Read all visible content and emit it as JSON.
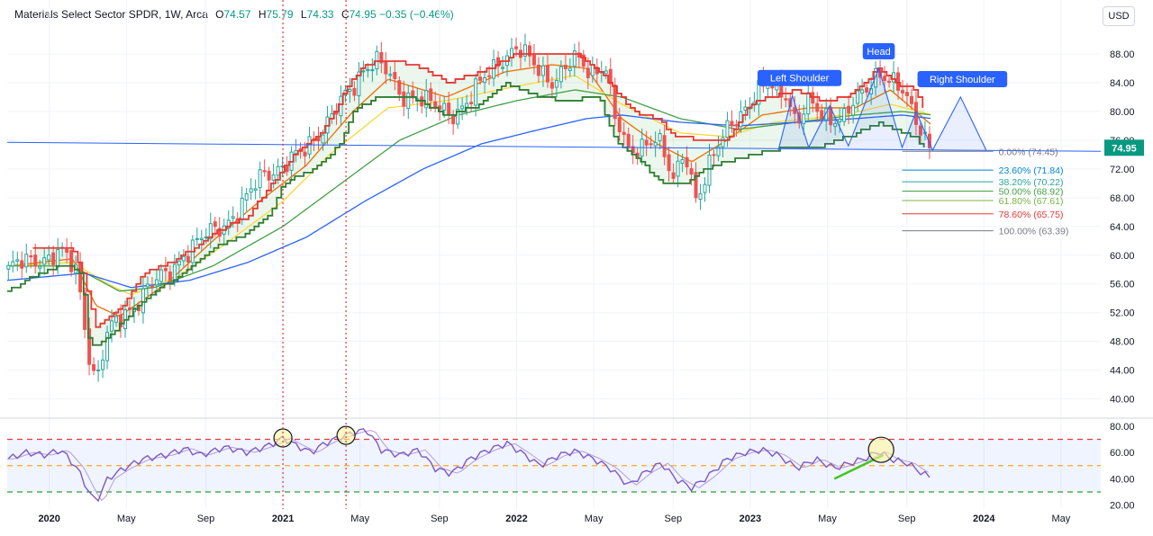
{
  "header": {
    "symbol": "Materials Select Sector SPDR",
    "interval": "1W",
    "exchange": "Arca",
    "open_label": "O",
    "open": "74.57",
    "high_label": "H",
    "high": "75.79",
    "low_label": "L",
    "low": "74.33",
    "close_label": "C",
    "close": "74.95",
    "change": "−0.35 (−0.46%)"
  },
  "currency_button": "USD",
  "last_price_tag": "74.95",
  "colors": {
    "up": "#26a69a",
    "down": "#ef5350",
    "support": "#2e7d32",
    "resistance": "#e53935",
    "ema_fast": "#ef6c00",
    "ema_mid": "#fdd835",
    "ema_slow": "#43a047",
    "ema_long": "#2962ff",
    "rsi": "#7e57c2",
    "pattern": "#2962ff"
  },
  "chart_data": {
    "type": "candlestick",
    "x_axis_ticks": [
      "2020",
      "May",
      "Sep",
      "2021",
      "May",
      "Sep",
      "2022",
      "May",
      "Sep",
      "2023",
      "May",
      "Sep",
      "2024",
      "May"
    ],
    "x_axis_tick_positions": [
      2020.0,
      2020.33,
      2020.67,
      2021.0,
      2021.33,
      2021.67,
      2022.0,
      2022.33,
      2022.67,
      2023.0,
      2023.33,
      2023.67,
      2024.0,
      2024.33
    ],
    "xlim": [
      2019.82,
      2024.5
    ],
    "price_axis": {
      "ylim": [
        37.7,
        91.5
      ],
      "ticks": [
        "40.00",
        "44.00",
        "48.00",
        "52.00",
        "56.00",
        "60.00",
        "64.00",
        "68.00",
        "72.00",
        "76.00",
        "80.00",
        "84.00",
        "88.00"
      ]
    },
    "rsi_axis": {
      "ylim": [
        17,
        84
      ],
      "ticks": [
        "20.00",
        "40.00",
        "60.00",
        "80.00"
      ],
      "levels": [
        70,
        50,
        30
      ]
    },
    "price_anchors": [
      [
        2019.82,
        58.0
      ],
      [
        2019.95,
        59.5
      ],
      [
        2020.05,
        60.3
      ],
      [
        2020.12,
        57.5
      ],
      [
        2020.17,
        46.5
      ],
      [
        2020.2,
        42.5
      ],
      [
        2020.25,
        49
      ],
      [
        2020.33,
        52
      ],
      [
        2020.42,
        55.5
      ],
      [
        2020.5,
        57
      ],
      [
        2020.58,
        60.5
      ],
      [
        2020.67,
        62.5
      ],
      [
        2020.75,
        64.5
      ],
      [
        2020.83,
        67
      ],
      [
        2020.92,
        71.5
      ],
      [
        2021.0,
        72.5
      ],
      [
        2021.08,
        74
      ],
      [
        2021.15,
        77
      ],
      [
        2021.22,
        80
      ],
      [
        2021.3,
        83
      ],
      [
        2021.35,
        86.5
      ],
      [
        2021.4,
        87.5
      ],
      [
        2021.45,
        85
      ],
      [
        2021.5,
        82
      ],
      [
        2021.58,
        82.5
      ],
      [
        2021.67,
        80
      ],
      [
        2021.72,
        79.5
      ],
      [
        2021.8,
        82
      ],
      [
        2021.88,
        85
      ],
      [
        2021.95,
        88
      ],
      [
        2022.0,
        89
      ],
      [
        2022.08,
        86
      ],
      [
        2022.15,
        84.5
      ],
      [
        2022.25,
        87
      ],
      [
        2022.32,
        85.5
      ],
      [
        2022.38,
        87
      ],
      [
        2022.42,
        79
      ],
      [
        2022.48,
        74
      ],
      [
        2022.55,
        76
      ],
      [
        2022.6,
        76.5
      ],
      [
        2022.67,
        70
      ],
      [
        2022.72,
        75
      ],
      [
        2022.77,
        68
      ],
      [
        2022.8,
        70
      ],
      [
        2022.85,
        74
      ],
      [
        2022.92,
        79
      ],
      [
        2023.0,
        81
      ],
      [
        2023.08,
        84
      ],
      [
        2023.15,
        83
      ],
      [
        2023.2,
        78
      ],
      [
        2023.25,
        81
      ],
      [
        2023.33,
        79.5
      ],
      [
        2023.4,
        79
      ],
      [
        2023.47,
        82
      ],
      [
        2023.55,
        86
      ],
      [
        2023.6,
        84
      ],
      [
        2023.65,
        82.5
      ],
      [
        2023.7,
        80
      ],
      [
        2023.75,
        76.5
      ],
      [
        2023.78,
        74.95
      ]
    ],
    "resistance_anchors": [
      [
        2019.93,
        61
      ],
      [
        2020.1,
        61
      ],
      [
        2020.14,
        57.5
      ],
      [
        2020.2,
        50
      ],
      [
        2020.3,
        52.5
      ],
      [
        2020.4,
        57.5
      ],
      [
        2020.55,
        59.5
      ],
      [
        2020.7,
        63
      ],
      [
        2020.85,
        65.5
      ],
      [
        2020.95,
        70
      ],
      [
        2021.05,
        74
      ],
      [
        2021.15,
        76.5
      ],
      [
        2021.22,
        80
      ],
      [
        2021.28,
        84
      ],
      [
        2021.35,
        86.5
      ],
      [
        2021.42,
        87
      ],
      [
        2021.5,
        87
      ],
      [
        2021.6,
        86
      ],
      [
        2021.7,
        84
      ],
      [
        2021.85,
        85.5
      ],
      [
        2022.0,
        88
      ],
      [
        2022.15,
        88
      ],
      [
        2022.25,
        88
      ],
      [
        2022.36,
        85.5
      ],
      [
        2022.42,
        83
      ],
      [
        2022.5,
        80
      ],
      [
        2022.6,
        79
      ],
      [
        2022.68,
        76.5
      ],
      [
        2022.8,
        76
      ],
      [
        2022.9,
        76
      ],
      [
        2023.0,
        81
      ],
      [
        2023.08,
        82
      ],
      [
        2023.2,
        83
      ],
      [
        2023.3,
        81.5
      ],
      [
        2023.42,
        82
      ],
      [
        2023.55,
        86
      ],
      [
        2023.62,
        84
      ],
      [
        2023.7,
        83
      ],
      [
        2023.75,
        80
      ]
    ],
    "support_anchors": [
      [
        2019.82,
        55
      ],
      [
        2019.95,
        57.5
      ],
      [
        2020.05,
        58.5
      ],
      [
        2020.1,
        58.5
      ],
      [
        2020.14,
        57
      ],
      [
        2020.17,
        47
      ],
      [
        2020.25,
        48.5
      ],
      [
        2020.35,
        52
      ],
      [
        2020.45,
        55
      ],
      [
        2020.6,
        58
      ],
      [
        2020.7,
        61
      ],
      [
        2020.85,
        63
      ],
      [
        2020.95,
        66
      ],
      [
        2021.0,
        70
      ],
      [
        2021.1,
        71.5
      ],
      [
        2021.2,
        74
      ],
      [
        2021.25,
        76
      ],
      [
        2021.3,
        80
      ],
      [
        2021.4,
        82
      ],
      [
        2021.55,
        82
      ],
      [
        2021.7,
        79.5
      ],
      [
        2021.85,
        81
      ],
      [
        2021.95,
        84
      ],
      [
        2022.05,
        82.5
      ],
      [
        2022.2,
        81.5
      ],
      [
        2022.35,
        82
      ],
      [
        2022.42,
        76
      ],
      [
        2022.5,
        74
      ],
      [
        2022.62,
        70
      ],
      [
        2022.72,
        70
      ],
      [
        2022.8,
        72
      ],
      [
        2022.9,
        73
      ],
      [
        2023.0,
        74
      ],
      [
        2023.15,
        75
      ],
      [
        2023.28,
        75
      ],
      [
        2023.42,
        76.5
      ],
      [
        2023.55,
        78.5
      ],
      [
        2023.7,
        76.5
      ],
      [
        2023.76,
        74.5
      ]
    ],
    "ema_series": [
      {
        "key": "ema_fast",
        "anchors": [
          [
            2019.82,
            58.5
          ],
          [
            2020.1,
            59.5
          ],
          [
            2020.2,
            53
          ],
          [
            2020.3,
            51.5
          ],
          [
            2020.5,
            56
          ],
          [
            2020.7,
            62
          ],
          [
            2020.9,
            67.5
          ],
          [
            2021.1,
            72.5
          ],
          [
            2021.3,
            80
          ],
          [
            2021.45,
            84.5
          ],
          [
            2021.7,
            82
          ],
          [
            2021.95,
            85.5
          ],
          [
            2022.15,
            86.5
          ],
          [
            2022.3,
            86
          ],
          [
            2022.45,
            79
          ],
          [
            2022.6,
            75.5
          ],
          [
            2022.75,
            73
          ],
          [
            2022.9,
            76
          ],
          [
            2023.05,
            79.5
          ],
          [
            2023.25,
            80.5
          ],
          [
            2023.45,
            80.5
          ],
          [
            2023.6,
            83
          ],
          [
            2023.78,
            78
          ]
        ]
      },
      {
        "key": "ema_mid",
        "anchors": [
          [
            2019.82,
            58.5
          ],
          [
            2020.1,
            59
          ],
          [
            2020.25,
            56
          ],
          [
            2020.35,
            54.5
          ],
          [
            2020.55,
            57
          ],
          [
            2020.75,
            61.5
          ],
          [
            2021.0,
            67.5
          ],
          [
            2021.2,
            74
          ],
          [
            2021.45,
            80.5
          ],
          [
            2021.7,
            81.5
          ],
          [
            2022.0,
            83.5
          ],
          [
            2022.25,
            85
          ],
          [
            2022.45,
            81
          ],
          [
            2022.7,
            77
          ],
          [
            2022.9,
            76.5
          ],
          [
            2023.1,
            78.5
          ],
          [
            2023.4,
            79.5
          ],
          [
            2023.6,
            81
          ],
          [
            2023.78,
            79.5
          ]
        ]
      },
      {
        "key": "ema_slow",
        "anchors": [
          [
            2019.82,
            58.5
          ],
          [
            2020.1,
            58.5
          ],
          [
            2020.3,
            55
          ],
          [
            2020.45,
            55.5
          ],
          [
            2020.7,
            58.5
          ],
          [
            2021.0,
            64
          ],
          [
            2021.25,
            70
          ],
          [
            2021.5,
            76
          ],
          [
            2021.75,
            79.5
          ],
          [
            2022.0,
            81.5
          ],
          [
            2022.25,
            83
          ],
          [
            2022.45,
            82
          ],
          [
            2022.7,
            79
          ],
          [
            2022.95,
            77.5
          ],
          [
            2023.2,
            78.5
          ],
          [
            2023.45,
            79.5
          ],
          [
            2023.65,
            80
          ],
          [
            2023.78,
            79.5
          ]
        ]
      },
      {
        "key": "ema_long",
        "anchors": [
          [
            2019.82,
            56.5
          ],
          [
            2020.15,
            57.5
          ],
          [
            2020.35,
            55.5
          ],
          [
            2020.6,
            56.5
          ],
          [
            2020.85,
            59
          ],
          [
            2021.1,
            62.5
          ],
          [
            2021.35,
            67.5
          ],
          [
            2021.6,
            72
          ],
          [
            2021.85,
            75.5
          ],
          [
            2022.1,
            77.5
          ],
          [
            2022.3,
            79
          ],
          [
            2022.45,
            79.5
          ],
          [
            2022.7,
            78.5
          ],
          [
            2022.95,
            78
          ],
          [
            2023.2,
            78.5
          ],
          [
            2023.45,
            79
          ],
          [
            2023.65,
            79.5
          ],
          [
            2023.78,
            79
          ]
        ]
      }
    ],
    "rsi_anchors": [
      [
        2019.82,
        55
      ],
      [
        2019.9,
        60
      ],
      [
        2019.98,
        58
      ],
      [
        2020.05,
        62
      ],
      [
        2020.12,
        48
      ],
      [
        2020.17,
        30
      ],
      [
        2020.2,
        22
      ],
      [
        2020.25,
        40
      ],
      [
        2020.32,
        48
      ],
      [
        2020.4,
        55
      ],
      [
        2020.5,
        58
      ],
      [
        2020.58,
        63
      ],
      [
        2020.65,
        58
      ],
      [
        2020.75,
        64
      ],
      [
        2020.85,
        60
      ],
      [
        2020.95,
        66
      ],
      [
        2021.0,
        71
      ],
      [
        2021.05,
        66
      ],
      [
        2021.12,
        60
      ],
      [
        2021.18,
        67
      ],
      [
        2021.22,
        70
      ],
      [
        2021.27,
        73
      ],
      [
        2021.32,
        76
      ],
      [
        2021.36,
        77
      ],
      [
        2021.42,
        62
      ],
      [
        2021.5,
        58
      ],
      [
        2021.58,
        62
      ],
      [
        2021.65,
        48
      ],
      [
        2021.72,
        44
      ],
      [
        2021.8,
        55
      ],
      [
        2021.88,
        62
      ],
      [
        2021.96,
        67
      ],
      [
        2022.02,
        60
      ],
      [
        2022.1,
        50
      ],
      [
        2022.18,
        58
      ],
      [
        2022.25,
        61
      ],
      [
        2022.33,
        55
      ],
      [
        2022.4,
        48
      ],
      [
        2022.48,
        35
      ],
      [
        2022.55,
        45
      ],
      [
        2022.62,
        52
      ],
      [
        2022.68,
        40
      ],
      [
        2022.75,
        33
      ],
      [
        2022.82,
        42
      ],
      [
        2022.9,
        55
      ],
      [
        2022.98,
        60
      ],
      [
        2023.05,
        62
      ],
      [
        2023.12,
        58
      ],
      [
        2023.2,
        48
      ],
      [
        2023.28,
        55
      ],
      [
        2023.36,
        48
      ],
      [
        2023.43,
        52
      ],
      [
        2023.5,
        56
      ],
      [
        2023.55,
        61
      ],
      [
        2023.6,
        55
      ],
      [
        2023.67,
        52
      ],
      [
        2023.73,
        45
      ],
      [
        2023.78,
        40
      ]
    ],
    "fibonacci": [
      {
        "pct": "0.00%",
        "value": "(74.45)",
        "price": 74.45,
        "color": "#787b86"
      },
      {
        "pct": "23.60%",
        "value": "(71.84)",
        "price": 71.84,
        "color": "#0288d1"
      },
      {
        "pct": "38.20%",
        "value": "(70.22)",
        "price": 70.22,
        "color": "#26a69a"
      },
      {
        "pct": "50.00%",
        "value": "(68.92)",
        "price": 68.92,
        "color": "#43a047"
      },
      {
        "pct": "61.80%",
        "value": "(67.61)",
        "price": 67.61,
        "color": "#7cb342"
      },
      {
        "pct": "78.60%",
        "value": "(65.75)",
        "price": 65.75,
        "color": "#e53935"
      },
      {
        "pct": "100.00%",
        "value": "(63.39)",
        "price": 63.39,
        "color": "#787b86"
      }
    ],
    "pattern_labels": {
      "left": "Left Shoulder",
      "head": "Head",
      "right": "Right Shoulder"
    },
    "vertical_markers": [
      2021.0,
      2021.27
    ],
    "rsi_circles": [
      [
        2021.0,
        71
      ],
      [
        2021.27,
        73
      ],
      [
        2023.56,
        62
      ]
    ]
  }
}
